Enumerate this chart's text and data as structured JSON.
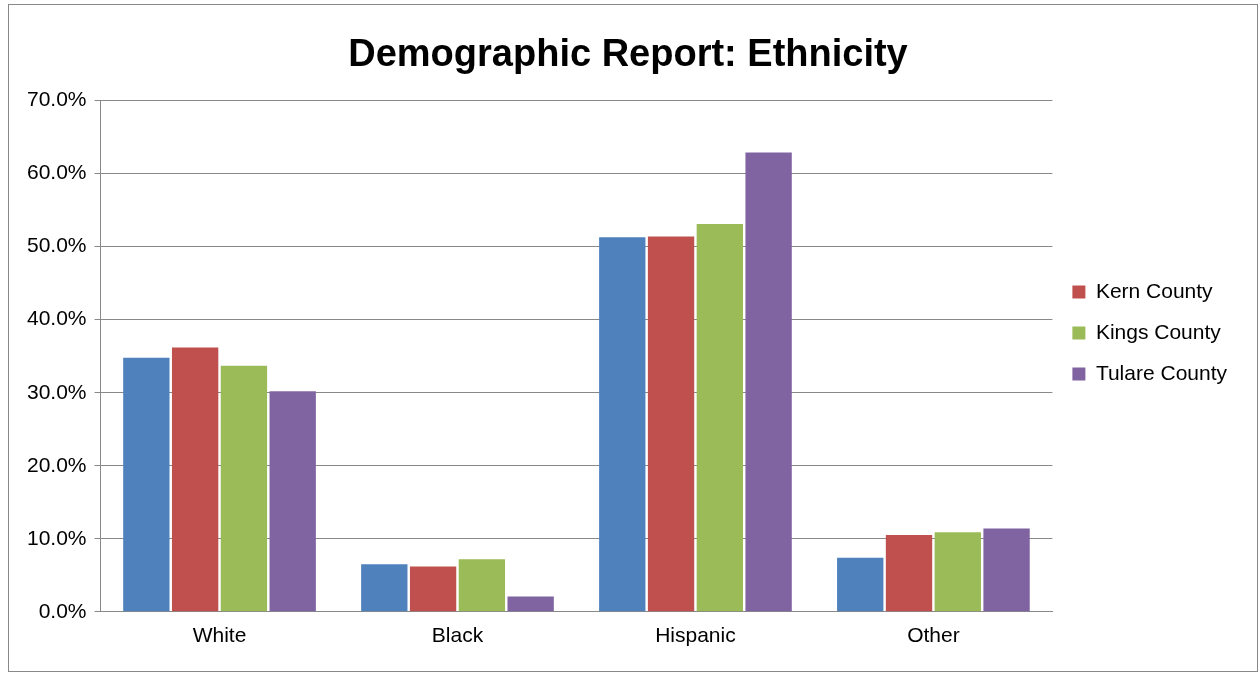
{
  "chart_data": {
    "type": "bar",
    "title": "Demographic Report: Ethnicity",
    "categories": [
      "White",
      "Black",
      "Hispanic",
      "Other"
    ],
    "series": [
      {
        "color": "#4f81bd",
        "values": [
          34.8,
          6.5,
          51.3,
          7.4
        ]
      },
      {
        "name": "Kern County",
        "color": "#c0504d",
        "values": [
          36.2,
          6.2,
          51.4,
          10.5
        ]
      },
      {
        "name": "Kings County",
        "color": "#9bbb59",
        "values": [
          33.7,
          7.2,
          53.1,
          10.9
        ]
      },
      {
        "name": "Tulare County",
        "color": "#8064a2",
        "values": [
          30.2,
          2.1,
          62.9,
          11.4
        ]
      }
    ],
    "ylim": [
      0,
      70
    ],
    "yticks": [
      {
        "value": 0,
        "label": "0.0%"
      },
      {
        "value": 10,
        "label": "10.0%"
      },
      {
        "value": 20,
        "label": "20.0%"
      },
      {
        "value": 30,
        "label": "30.0%"
      },
      {
        "value": 40,
        "label": "40.0%"
      },
      {
        "value": 50,
        "label": "50.0%"
      },
      {
        "value": 60,
        "label": "60.0%"
      },
      {
        "value": 70,
        "label": "70.0%"
      }
    ],
    "grid": "y",
    "legend": "right"
  }
}
